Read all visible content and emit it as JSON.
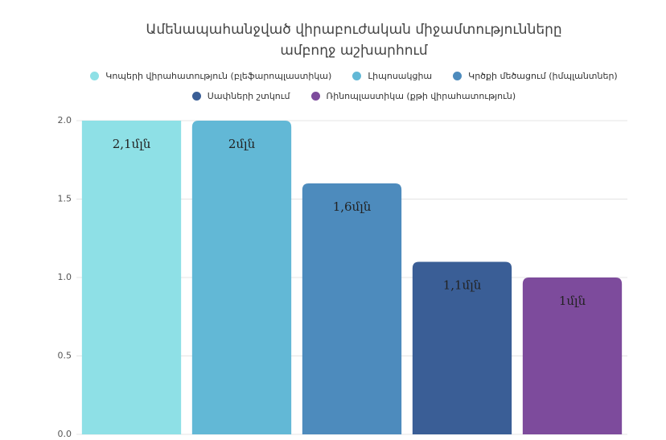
{
  "chart_data": {
    "type": "bar",
    "title": "Ամենապահանջված վիրաբուժական միջամտությունները ամբողջ աշխարհում",
    "categories": [
      "Կոպերի վիրահատություն (բլեֆարոպլաստիկա)",
      "Լիպոսակցիա",
      "Կրծքի մեծացում (իմպլանտներ)",
      "Սափների շտկում",
      "Ռինոպլաստիկա (քթի վիրահատություն)"
    ],
    "values": [
      2.1,
      2,
      1.6,
      1.1,
      1
    ],
    "value_labels": [
      "2,1մլն",
      "2մլն",
      "1,6մլն",
      "1,1մլն",
      "1մլն"
    ],
    "colors": [
      "#8ee0e6",
      "#62b8d6",
      "#4d8bbd",
      "#3a5e96",
      "#7d4b9c"
    ],
    "ylim": [
      0,
      2
    ],
    "yticks": [
      {
        "value": 0,
        "label": "0.0"
      },
      {
        "value": 0.5,
        "label": "0.5"
      },
      {
        "value": 1,
        "label": "1.0"
      },
      {
        "value": 1.5,
        "label": "1.5"
      },
      {
        "value": 2,
        "label": "2.0"
      }
    ],
    "grid": true
  }
}
